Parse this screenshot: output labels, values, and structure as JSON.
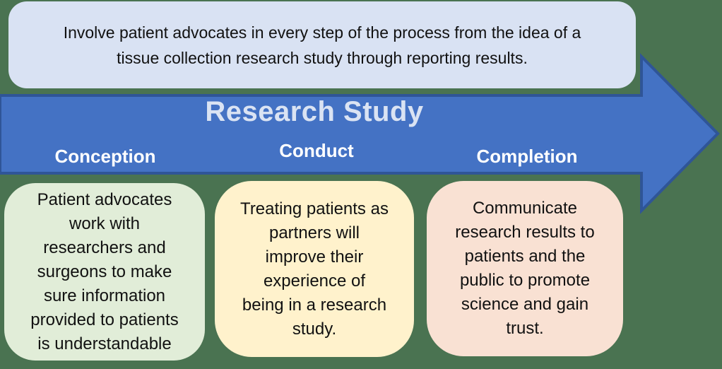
{
  "background_color": "#4A7351",
  "intro": {
    "fill_color": "#D9E2F3",
    "text_color": "#111111",
    "lines": [
      "Involve patient advocates in every step of the process from the idea of a",
      "tissue collection research study through reporting results."
    ]
  },
  "arrow": {
    "title": "Research Study",
    "fill_color": "#4472C4",
    "border_color": "#2F5597",
    "title_color": "#DAE3F3",
    "label_color": "#FFFFFF",
    "phases": [
      {
        "label": "Conception",
        "card_color": "#E1EDD8",
        "lines": [
          "Patient advocates",
          "work with",
          "researchers and",
          "surgeons to make",
          "sure information",
          "provided to patients",
          "is understandable"
        ]
      },
      {
        "label": "Conduct",
        "card_color": "#FFF2CC",
        "lines": [
          "Treating patients as",
          "partners will",
          "improve their",
          "experience of",
          "being in a research",
          "study."
        ]
      },
      {
        "label": "Completion",
        "card_color": "#F9E1D3",
        "lines": [
          "Communicate",
          "research results to",
          "patients and the",
          "public to promote",
          "science and gain",
          "trust."
        ]
      }
    ]
  }
}
